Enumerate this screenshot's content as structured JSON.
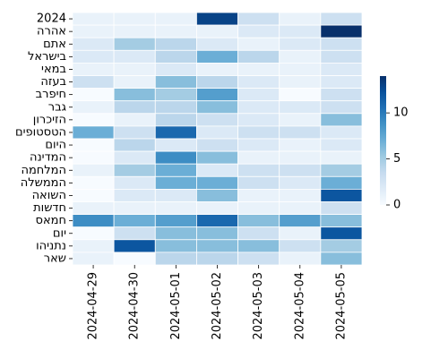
{
  "chart_data": {
    "type": "heatmap",
    "title": "",
    "xlabel": "",
    "ylabel": "",
    "x": [
      "2024-04-29",
      "2024-04-30",
      "2024-05-01",
      "2024-05-02",
      "2024-05-03",
      "2024-05-04",
      "2024-05-05"
    ],
    "y": [
      "2024",
      "אהרה",
      "אתם",
      "בישראל",
      "במאי",
      "בעזה",
      "חיפרב",
      "גבר",
      "הזיכרון",
      "הטסטופים",
      "היום",
      "המדינה",
      "המלחמה",
      "הממשלה",
      "השואה",
      "חדשות",
      "חמאס",
      "יום",
      "נתניהו",
      "שאר"
    ],
    "values": [
      [
        1,
        1,
        1,
        13,
        3,
        1,
        3
      ],
      [
        1,
        1,
        1,
        1,
        2,
        2,
        14
      ],
      [
        2,
        5,
        4,
        2,
        1,
        2,
        3
      ],
      [
        2,
        2,
        4,
        7,
        4,
        1,
        3
      ],
      [
        1,
        1,
        2,
        1,
        1,
        1,
        2
      ],
      [
        3,
        1,
        6,
        4,
        2,
        1,
        2
      ],
      [
        0,
        6,
        5,
        8,
        2,
        0,
        3
      ],
      [
        1,
        4,
        4,
        6,
        2,
        2,
        3
      ],
      [
        0,
        1,
        4,
        3,
        2,
        1,
        6
      ],
      [
        7,
        3,
        11,
        2,
        3,
        3,
        2
      ],
      [
        0,
        4,
        2,
        3,
        2,
        1,
        2
      ],
      [
        0,
        2,
        9,
        6,
        1,
        1,
        1
      ],
      [
        1,
        5,
        7,
        2,
        3,
        3,
        5
      ],
      [
        0,
        2,
        7,
        7,
        3,
        2,
        7
      ],
      [
        0,
        2,
        2,
        6,
        1,
        1,
        12
      ],
      [
        1,
        1,
        1,
        1,
        1,
        1,
        3
      ],
      [
        9,
        7,
        8,
        11,
        6,
        8,
        6
      ],
      [
        0,
        3,
        6,
        6,
        3,
        1,
        12
      ],
      [
        1,
        12,
        6,
        6,
        6,
        3,
        5
      ],
      [
        1,
        0,
        4,
        4,
        3,
        1,
        6
      ]
    ],
    "vmin": 0,
    "vmax": 14,
    "colormap": "Blues",
    "colorbar": {
      "ticks": [
        0,
        5,
        10
      ],
      "tick_labels": [
        "0",
        "5",
        "10"
      ]
    },
    "grid_lines_color": "#ffffff",
    "legend": "colorbar-right"
  }
}
